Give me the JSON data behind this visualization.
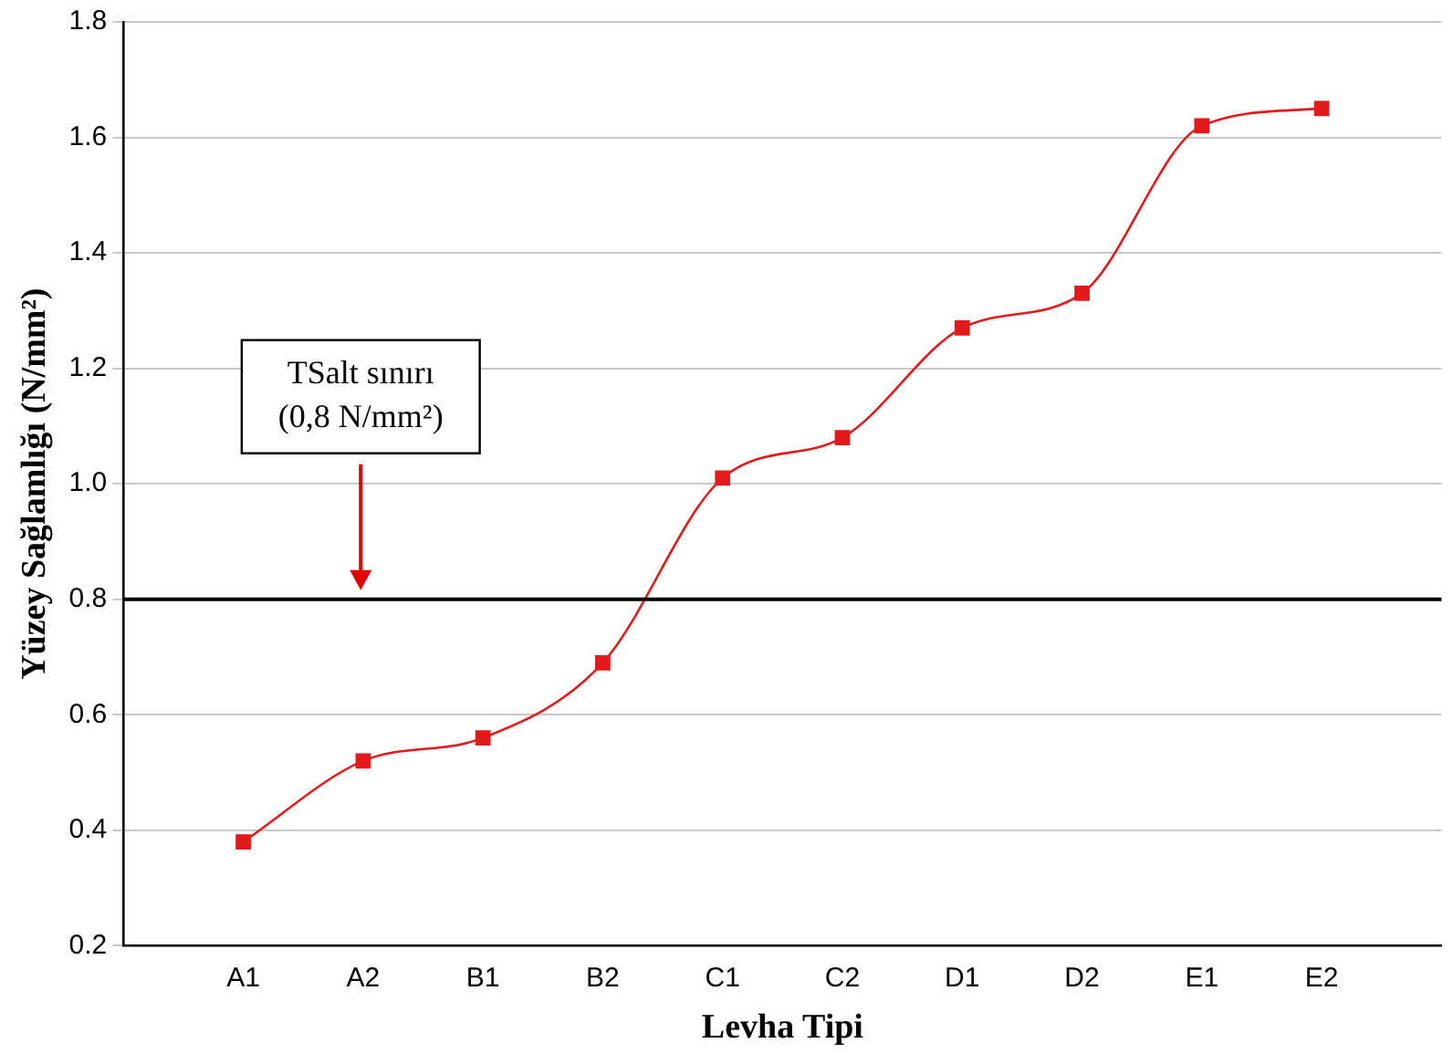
{
  "chart_data": {
    "type": "line",
    "xlabel": "Levha Tipi",
    "ylabel": "Yüzey Sağlamlığı (N/mm²)",
    "categories": [
      null,
      "A1",
      "A2",
      "B1",
      "B2",
      "C1",
      "C2",
      "D1",
      "D2",
      "E1",
      "E2",
      null
    ],
    "series": [
      {
        "color": "#e31a1c",
        "values": [
          null,
          0.38,
          0.52,
          0.56,
          0.69,
          1.01,
          1.08,
          1.27,
          1.33,
          1.62,
          1.65,
          null
        ]
      }
    ],
    "ylim": [
      0.2,
      1.8
    ],
    "yticks": [
      0.2,
      0.4,
      0.6,
      0.8,
      {
        "value": 1,
        "label": "1.0"
      },
      1.2,
      1.4,
      1.6,
      1.8
    ],
    "grid": "y",
    "legend": false,
    "marker": "square",
    "line_style": "solid",
    "ref_lines": [
      {
        "axis": "y",
        "value": 0.8,
        "label": "TSalt sınırı (0,8 N/mm²)",
        "color": "#000000"
      }
    ]
  }
}
